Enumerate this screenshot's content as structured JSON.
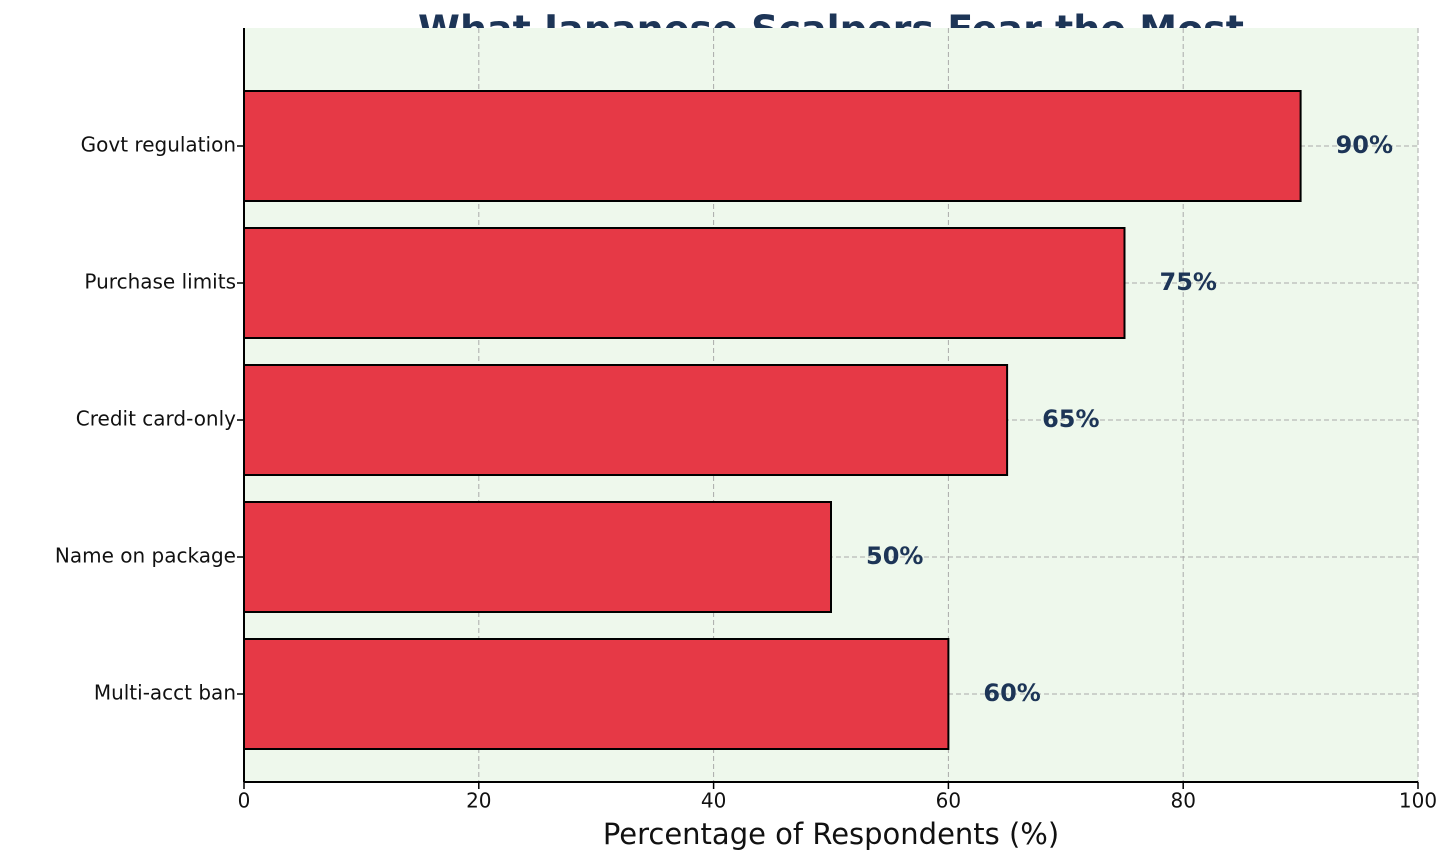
{
  "chart_data": {
    "type": "hbar",
    "title": "What Japanese Scalpers Fear the Most",
    "x_label": "Percentage of Respondents (%)",
    "categories": [
      "Govt regulation",
      "Purchase limits",
      "Credit card-only",
      "Name on package",
      "Multi-acct ban"
    ],
    "values": [
      90,
      75,
      65,
      50,
      60
    ],
    "value_labels": [
      "90%",
      "75%",
      "65%",
      "50%",
      "60%"
    ],
    "color": "#e63946",
    "xlim": [
      0,
      100
    ],
    "xticks": [
      0,
      20,
      40,
      60,
      80,
      100
    ],
    "grid": true
  }
}
